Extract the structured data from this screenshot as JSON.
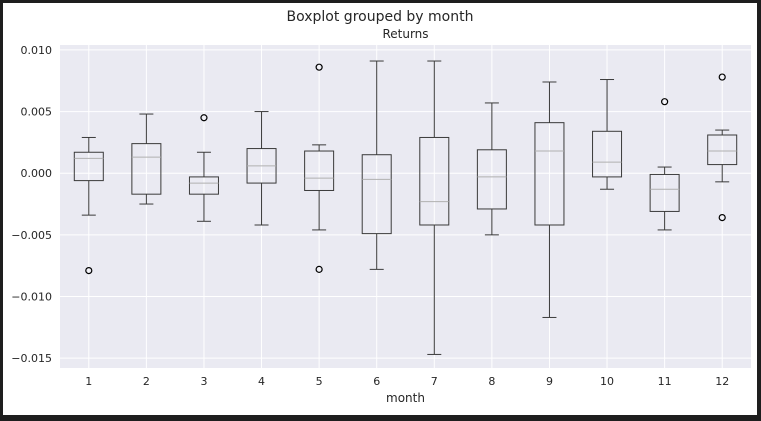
{
  "chart_data": {
    "type": "boxplot",
    "suptitle": "Boxplot grouped by month",
    "title": "Returns",
    "xlabel": "month",
    "ylabel": "",
    "ylim": [
      -0.0158,
      0.0104
    ],
    "yticks": [
      0.01,
      0.005,
      0.0,
      -0.005,
      -0.01,
      -0.015
    ],
    "ytick_labels": [
      "0.010",
      "0.005",
      "0.000",
      "−0.005",
      "−0.010",
      "−0.015"
    ],
    "grid": true,
    "categories": [
      "1",
      "2",
      "3",
      "4",
      "5",
      "6",
      "7",
      "8",
      "9",
      "10",
      "11",
      "12"
    ],
    "boxes": [
      {
        "whislo": -0.0034,
        "q1": -0.0006,
        "med": 0.0012,
        "q3": 0.0017,
        "whishi": 0.0029,
        "fliers": [
          -0.0079
        ]
      },
      {
        "whislo": -0.0025,
        "q1": -0.0017,
        "med": 0.0013,
        "q3": 0.0024,
        "whishi": 0.0048,
        "fliers": []
      },
      {
        "whislo": -0.0039,
        "q1": -0.0017,
        "med": -0.0008,
        "q3": -0.0003,
        "whishi": 0.0017,
        "fliers": [
          0.0045
        ]
      },
      {
        "whislo": -0.0042,
        "q1": -0.0008,
        "med": 0.0006,
        "q3": 0.002,
        "whishi": 0.005,
        "fliers": []
      },
      {
        "whislo": -0.0046,
        "q1": -0.0014,
        "med": -0.0004,
        "q3": 0.0018,
        "whishi": 0.0023,
        "fliers": [
          0.0086,
          -0.0078
        ]
      },
      {
        "whislo": -0.0078,
        "q1": -0.0049,
        "med": -0.0005,
        "q3": 0.0015,
        "whishi": 0.0091,
        "fliers": []
      },
      {
        "whislo": -0.0147,
        "q1": -0.0042,
        "med": -0.0023,
        "q3": 0.0029,
        "whishi": 0.0091,
        "fliers": []
      },
      {
        "whislo": -0.005,
        "q1": -0.0029,
        "med": -0.0003,
        "q3": 0.0019,
        "whishi": 0.0057,
        "fliers": []
      },
      {
        "whislo": -0.0117,
        "q1": -0.0042,
        "med": 0.0018,
        "q3": 0.0041,
        "whishi": 0.0074,
        "fliers": []
      },
      {
        "whislo": -0.0013,
        "q1": -0.0003,
        "med": 0.0009,
        "q3": 0.0034,
        "whishi": 0.0076,
        "fliers": []
      },
      {
        "whislo": -0.0046,
        "q1": -0.0031,
        "med": -0.0013,
        "q3": -0.0001,
        "whishi": 0.0005,
        "fliers": [
          0.0058
        ]
      },
      {
        "whislo": -0.0007,
        "q1": 0.0007,
        "med": 0.0018,
        "q3": 0.0031,
        "whishi": 0.0035,
        "fliers": [
          0.0078,
          -0.0036
        ]
      }
    ]
  },
  "colors": {
    "figure_background": "#ffffff",
    "plot_background": "#eaeaf2",
    "grid": "#ffffff",
    "box": "#3a3a3a",
    "median": "#b0b0b0",
    "outer_frame": "#1e1e1e"
  }
}
